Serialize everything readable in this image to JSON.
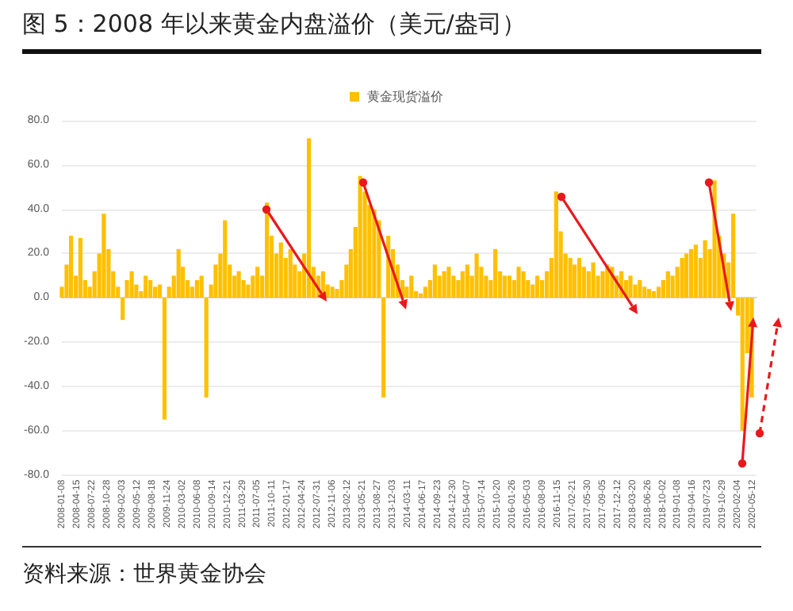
{
  "chart_data": {
    "type": "bar",
    "title": "图 5：2008 年以来黄金内盘溢价（美元/盎司）",
    "annotations": [
      "资料来源：世界黄金协会"
    ],
    "x": [
      "2008-01",
      "2008-02",
      "2008-03",
      "2008-04",
      "2008-05",
      "2008-06",
      "2008-07",
      "2008-08",
      "2008-09",
      "2008-10",
      "2008-11",
      "2008-12",
      "2009-01",
      "2009-02",
      "2009-03",
      "2009-04",
      "2009-05",
      "2009-06",
      "2009-07",
      "2009-08",
      "2009-09",
      "2009-10",
      "2009-11",
      "2009-12",
      "2010-01",
      "2010-02",
      "2010-03",
      "2010-04",
      "2010-05",
      "2010-06",
      "2010-07",
      "2010-08",
      "2010-09",
      "2010-10",
      "2010-11",
      "2010-12",
      "2011-01",
      "2011-02",
      "2011-03",
      "2011-04",
      "2011-05",
      "2011-06",
      "2011-07",
      "2011-08",
      "2011-09",
      "2011-10",
      "2011-11",
      "2011-12",
      "2012-01",
      "2012-02",
      "2012-03",
      "2012-04",
      "2012-05",
      "2012-06",
      "2012-07",
      "2012-08",
      "2012-09",
      "2012-10",
      "2012-11",
      "2012-12",
      "2013-01",
      "2013-02",
      "2013-03",
      "2013-04",
      "2013-05",
      "2013-06",
      "2013-07",
      "2013-08",
      "2013-09",
      "2013-10",
      "2013-11",
      "2013-12",
      "2014-01",
      "2014-02",
      "2014-03",
      "2014-04",
      "2014-05",
      "2014-06",
      "2014-07",
      "2014-08",
      "2014-09",
      "2014-10",
      "2014-11",
      "2014-12",
      "2015-01",
      "2015-02",
      "2015-03",
      "2015-04",
      "2015-05",
      "2015-06",
      "2015-07",
      "2015-08",
      "2015-09",
      "2015-10",
      "2015-11",
      "2015-12",
      "2016-01",
      "2016-02",
      "2016-03",
      "2016-04",
      "2016-05",
      "2016-06",
      "2016-07",
      "2016-08",
      "2016-09",
      "2016-10",
      "2016-11",
      "2016-12",
      "2017-01",
      "2017-02",
      "2017-03",
      "2017-04",
      "2017-05",
      "2017-06",
      "2017-07",
      "2017-08",
      "2017-09",
      "2017-10",
      "2017-11",
      "2017-12",
      "2018-01",
      "2018-02",
      "2018-03",
      "2018-04",
      "2018-05",
      "2018-06",
      "2018-07",
      "2018-08",
      "2018-09",
      "2018-10",
      "2018-11",
      "2018-12",
      "2019-01",
      "2019-02",
      "2019-03",
      "2019-04",
      "2019-05",
      "2019-06",
      "2019-07",
      "2019-08",
      "2019-09",
      "2019-10",
      "2019-11",
      "2019-12",
      "2020-01",
      "2020-02",
      "2020-03",
      "2020-04",
      "2020-05"
    ],
    "series": [
      {
        "name": "黄金现货溢价",
        "color": "#ffc000",
        "values": [
          5,
          15,
          28,
          10,
          27,
          8,
          5,
          12,
          20,
          38,
          22,
          12,
          5,
          -10,
          8,
          12,
          6,
          3,
          10,
          8,
          5,
          6,
          -55,
          5,
          10,
          22,
          14,
          8,
          5,
          8,
          10,
          -45,
          6,
          15,
          20,
          35,
          15,
          10,
          12,
          8,
          6,
          10,
          14,
          10,
          43,
          28,
          20,
          25,
          18,
          22,
          15,
          12,
          20,
          72,
          14,
          10,
          12,
          6,
          5,
          4,
          8,
          15,
          22,
          32,
          55,
          48,
          42,
          40,
          35,
          -45,
          28,
          22,
          15,
          8,
          5,
          10,
          3,
          2,
          5,
          8,
          15,
          10,
          12,
          14,
          10,
          8,
          12,
          15,
          10,
          20,
          14,
          10,
          8,
          22,
          12,
          10,
          10,
          8,
          14,
          12,
          8,
          6,
          10,
          8,
          12,
          18,
          48,
          30,
          20,
          18,
          15,
          18,
          14,
          12,
          16,
          10,
          12,
          15,
          14,
          10,
          12,
          8,
          10,
          6,
          8,
          5,
          4,
          3,
          5,
          8,
          12,
          10,
          14,
          18,
          20,
          22,
          24,
          18,
          26,
          22,
          53,
          28,
          20,
          16,
          38,
          -8,
          -60,
          -25,
          -45
        ]
      }
    ],
    "xlim": [
      "2008-01",
      "2020-06"
    ],
    "xticks": [
      "2008-01-08",
      "2008-04-15",
      "2008-07-22",
      "2008-10-28",
      "2009-02-03",
      "2009-05-12",
      "2009-08-18",
      "2009-11-24",
      "2010-03-02",
      "2010-06-08",
      "2010-09-14",
      "2010-12-21",
      "2011-03-29",
      "2011-07-05",
      "2011-10-11",
      "2012-01-17",
      "2012-04-24",
      "2012-07-31",
      "2012-11-06",
      "2013-02-12",
      "2013-05-21",
      "2013-08-27",
      "2013-12-03",
      "2014-03-11",
      "2014-06-17",
      "2014-09-23",
      "2014-12-30",
      "2015-04-07",
      "2015-07-14",
      "2015-10-20",
      "2016-01-26",
      "2016-05-03",
      "2016-08-09",
      "2016-11-15",
      "2017-02-21",
      "2017-05-30",
      "2017-09-05",
      "2017-12-12",
      "2018-03-20",
      "2018-06-26",
      "2018-10-02",
      "2019-01-08",
      "2019-04-16",
      "2019-07-23",
      "2019-10-29",
      "2020-02-04",
      "2020-05-12"
    ],
    "ylim": [
      -80,
      80
    ],
    "yticks": [
      {
        "value": -80,
        "label": "-80.0"
      },
      {
        "value": -60,
        "label": "-60.0"
      },
      {
        "value": -40,
        "label": "-40.0"
      },
      {
        "value": -20,
        "label": "-20.0"
      },
      {
        "value": 0,
        "label": "0.0"
      },
      {
        "value": 20,
        "label": "20.0"
      },
      {
        "value": 40,
        "label": "40.0"
      },
      {
        "value": 60,
        "label": "60.0"
      },
      {
        "value": 80,
        "label": "80.0"
      }
    ],
    "grid": "y",
    "legend": "top"
  }
}
